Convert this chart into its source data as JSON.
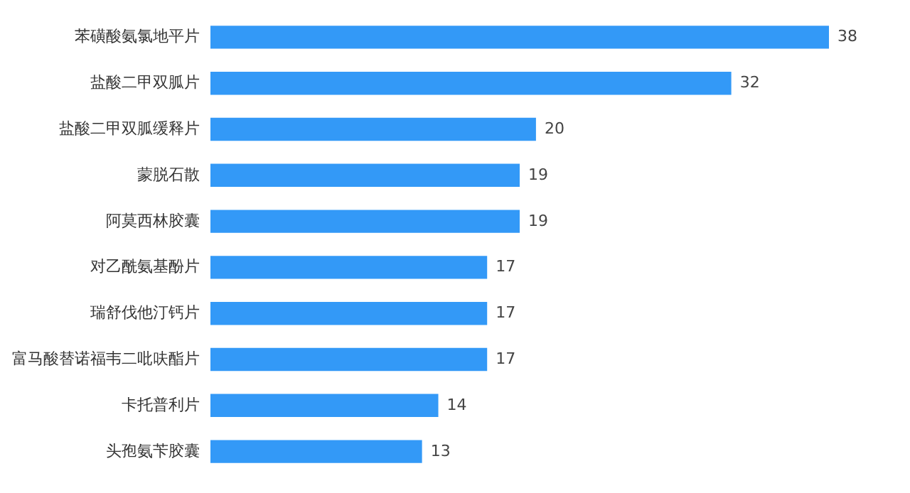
{
  "chart_data": {
    "type": "bar",
    "orientation": "horizontal",
    "categories": [
      "苯磺酸氨氯地平片",
      "盐酸二甲双胍片",
      "盐酸二甲双胍缓释片",
      "蒙脱石散",
      "阿莫西林胶囊",
      "对乙酰氨基酚片",
      "瑞舒伐他汀钙片",
      "富马酸替诺福韦二吡呋酯片",
      "卡托普利片",
      "头孢氨苄胶囊"
    ],
    "values": [
      38,
      32,
      20,
      19,
      19,
      17,
      17,
      17,
      14,
      13
    ],
    "color": "#3399f7",
    "data_labels": true
  }
}
